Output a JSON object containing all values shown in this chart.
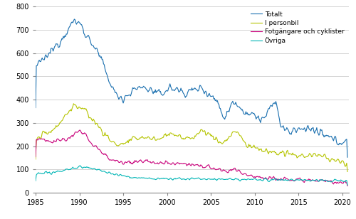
{
  "title": "",
  "xlabel": "",
  "ylabel": "",
  "xlim": [
    1985.0,
    2020.75
  ],
  "ylim": [
    0,
    800
  ],
  "yticks": [
    0,
    100,
    200,
    300,
    400,
    500,
    600,
    700,
    800
  ],
  "xticks": [
    1985,
    1990,
    1995,
    2000,
    2005,
    2010,
    2015,
    2020
  ],
  "legend_labels": [
    "Totalt",
    "I personbil",
    "Fotgängare och cyklister",
    "Övriga"
  ],
  "colors": {
    "totalt": "#1a6faf",
    "personbil": "#b5c400",
    "fotgangare": "#c8007a",
    "ovriga": "#00b5b5"
  },
  "background_color": "#ffffff",
  "grid_color": "#cccccc",
  "figsize": [
    5.0,
    3.08
  ],
  "dpi": 100
}
